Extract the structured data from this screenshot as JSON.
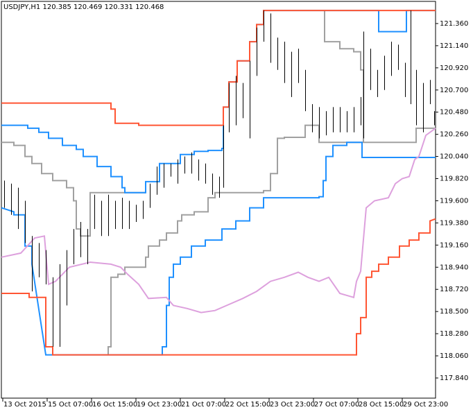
{
  "chart_data": {
    "type": "ohlc-lines",
    "title": "USDJPY,H1  120.385 120.469 120.331 120.468",
    "xlim": [
      0,
      313
    ],
    "ylim": [
      117.64,
      121.58
    ],
    "xticks": [
      {
        "value": 1,
        "label": "13 Oct 2015"
      },
      {
        "value": 33,
        "label": "15 Oct 07:00"
      },
      {
        "value": 65,
        "label": "16 Oct 15:00"
      },
      {
        "value": 97,
        "label": "19 Oct 23:00"
      },
      {
        "value": 129,
        "label": "21 Oct 07:00"
      },
      {
        "value": 161,
        "label": "22 Oct 15:00"
      },
      {
        "value": 193,
        "label": "23 Oct 23:00"
      },
      {
        "value": 225,
        "label": "27 Oct 07:00"
      },
      {
        "value": 257,
        "label": "28 Oct 15:00"
      },
      {
        "value": 289,
        "label": "29 Oct 23:00"
      }
    ],
    "yticks": [
      {
        "value": 121.36,
        "label": "121.360"
      },
      {
        "value": 121.14,
        "label": "121.140"
      },
      {
        "value": 120.92,
        "label": "120.920"
      },
      {
        "value": 120.7,
        "label": "120.700"
      },
      {
        "value": 120.48,
        "label": "120.480"
      },
      {
        "value": 120.26,
        "label": "120.260"
      },
      {
        "value": 120.04,
        "label": "120.040"
      },
      {
        "value": 119.82,
        "label": "119.820"
      },
      {
        "value": 119.6,
        "label": "119.600"
      },
      {
        "value": 119.38,
        "label": "119.380"
      },
      {
        "value": 119.16,
        "label": "119.160"
      },
      {
        "value": 118.94,
        "label": "118.940"
      },
      {
        "value": 118.72,
        "label": "118.720"
      },
      {
        "value": 118.5,
        "label": "118.500"
      },
      {
        "value": 118.28,
        "label": "118.280"
      },
      {
        "value": 118.06,
        "label": "118.060"
      },
      {
        "value": 117.84,
        "label": "117.840"
      }
    ],
    "bars": {
      "color": "#000000",
      "x": [
        2,
        7,
        12,
        17,
        22,
        27,
        32,
        37,
        42,
        47,
        52,
        57,
        62,
        67,
        72,
        77,
        82,
        87,
        92,
        97,
        102,
        107,
        112,
        117,
        122,
        127,
        132,
        137,
        142,
        147,
        152,
        157,
        160,
        164,
        169,
        174,
        179,
        184,
        189,
        194,
        199,
        204,
        209,
        214,
        219,
        224,
        229,
        234,
        239,
        244,
        249,
        254,
        259,
        261,
        266,
        271,
        276,
        281,
        286,
        291,
        295,
        299,
        304,
        309,
        312
      ],
      "low": [
        119.53,
        119.46,
        119.32,
        119.18,
        118.7,
        118.84,
        118.77,
        118.15,
        118.15,
        118.56,
        118.97,
        119.04,
        118.97,
        119.32,
        119.25,
        119.25,
        119.32,
        119.32,
        119.32,
        119.39,
        119.42,
        119.53,
        119.66,
        119.73,
        119.84,
        119.77,
        119.87,
        119.87,
        119.8,
        119.77,
        119.66,
        119.63,
        119.73,
        120.28,
        120.35,
        120.42,
        120.22,
        120.84,
        121.18,
        120.97,
        120.9,
        120.77,
        120.63,
        120.77,
        120.49,
        120.28,
        120.22,
        120.25,
        120.28,
        120.28,
        120.28,
        120.28,
        120.35,
        120.22,
        120.7,
        120.63,
        120.7,
        120.84,
        120.9,
        120.63,
        120.56,
        120.35,
        120.28,
        120.56,
        120.35
      ],
      "high": [
        119.8,
        119.77,
        119.73,
        119.6,
        119.25,
        119.18,
        119.11,
        118.84,
        118.97,
        119.11,
        119.32,
        119.39,
        119.32,
        119.66,
        119.6,
        119.66,
        119.6,
        119.63,
        119.6,
        119.56,
        119.6,
        119.77,
        119.94,
        119.97,
        119.97,
        120.01,
        120.04,
        120.08,
        120.01,
        119.97,
        119.87,
        119.84,
        120.35,
        120.77,
        120.84,
        120.77,
        120.99,
        121.32,
        121.49,
        121.46,
        121.22,
        121.18,
        121.08,
        121.11,
        120.9,
        120.56,
        120.53,
        120.49,
        120.53,
        120.53,
        120.49,
        120.53,
        120.63,
        121.28,
        121.11,
        120.9,
        121.04,
        121.18,
        121.15,
        120.97,
        121.49,
        120.9,
        120.77,
        120.8,
        120.49
      ]
    },
    "series": [
      {
        "color": "#a0a0a0",
        "x": [
          0,
          9,
          9,
          17,
          17,
          22,
          22,
          29,
          29,
          37,
          37,
          47,
          47,
          52,
          52,
          54,
          54,
          57,
          57,
          64,
          64,
          104,
          null,
          77,
          77,
          79,
          79,
          84,
          84,
          89,
          89,
          104,
          104,
          106,
          106,
          114,
          114,
          119,
          119,
          127,
          127,
          130,
          130,
          139,
          139,
          149,
          149,
          154,
          154,
          189,
          189,
          194,
          194,
          199,
          199,
          204,
          204,
          219,
          219,
          229,
          229,
          299,
          299,
          313,
          null,
          233,
          233,
          244,
          244,
          254,
          254,
          259,
          259,
          261,
          261
        ],
        "values": [
          120.18,
          120.18,
          120.15,
          120.15,
          120.04,
          120.04,
          119.97,
          119.97,
          119.87,
          119.87,
          119.8,
          119.8,
          119.73,
          119.73,
          119.6,
          119.6,
          119.32,
          119.32,
          119.25,
          119.25,
          119.68,
          119.68,
          null,
          118.07,
          118.15,
          118.15,
          118.84,
          118.84,
          118.87,
          118.87,
          118.94,
          118.94,
          119.04,
          119.04,
          119.15,
          119.15,
          119.21,
          119.21,
          119.28,
          119.28,
          119.4,
          119.4,
          119.46,
          119.46,
          119.49,
          119.49,
          119.63,
          119.63,
          119.68,
          119.68,
          119.7,
          119.7,
          119.87,
          119.87,
          120.22,
          120.22,
          120.23,
          120.23,
          120.35,
          120.35,
          120.18,
          120.18,
          120.32,
          120.32,
          null,
          121.49,
          121.18,
          121.18,
          121.11,
          121.11,
          121.08,
          121.08,
          120.9,
          120.9,
          120.18
        ]
      },
      {
        "color": "#1e90ff",
        "x": [
          0,
          19,
          19,
          27,
          27,
          34,
          34,
          44,
          44,
          54,
          54,
          59,
          59,
          69,
          69,
          79,
          79,
          87,
          87,
          89,
          89,
          104,
          104,
          114,
          114,
          129,
          129,
          139,
          139,
          149,
          149,
          159,
          159,
          160,
          160,
          164,
          164,
          170,
          170,
          179,
          179,
          184,
          184,
          189,
          189,
          272,
          272,
          292,
          292,
          313
        ],
        "values": [
          120.35,
          120.35,
          120.32,
          120.32,
          120.28,
          120.28,
          120.22,
          120.22,
          120.15,
          120.15,
          120.11,
          120.11,
          120.04,
          120.04,
          119.94,
          119.94,
          119.84,
          119.84,
          119.73,
          119.73,
          119.68,
          119.68,
          119.79,
          119.79,
          119.97,
          119.97,
          120.06,
          120.06,
          120.09,
          120.09,
          120.1,
          120.1,
          120.12,
          120.12,
          120.53,
          120.53,
          120.78,
          120.78,
          120.99,
          120.99,
          121.18,
          121.18,
          121.35,
          121.35,
          121.49,
          121.49,
          121.28,
          121.28,
          121.49,
          121.49
        ]
      },
      {
        "color": "#1e90ff",
        "x": [
          0,
          9,
          9,
          17,
          17,
          22,
          22,
          32,
          116,
          116,
          119,
          119,
          121,
          121,
          124,
          124,
          129,
          129,
          137,
          137,
          147,
          147,
          159,
          159,
          169,
          169,
          179,
          179,
          189,
          189,
          229,
          229,
          232,
          232,
          234,
          234,
          239,
          239,
          249,
          249,
          260,
          260,
          313
        ],
        "values": [
          119.53,
          119.49,
          119.46,
          119.46,
          119.15,
          119.15,
          118.97,
          118.07,
          118.07,
          118.15,
          118.15,
          118.56,
          118.56,
          118.84,
          118.84,
          118.97,
          118.97,
          119.04,
          119.04,
          119.15,
          119.15,
          119.21,
          119.21,
          119.32,
          119.32,
          119.4,
          119.4,
          119.53,
          119.53,
          119.63,
          119.63,
          119.64,
          119.64,
          119.8,
          119.8,
          120.04,
          120.04,
          120.15,
          120.15,
          120.18,
          120.18,
          120.03,
          120.03
        ]
      },
      {
        "color": "#dda0dd",
        "x": [
          0,
          14,
          24,
          31,
          34,
          39,
          49,
          64,
          79,
          86,
          91,
          99,
          106,
          119,
          124,
          134,
          144,
          154,
          164,
          174,
          184,
          194,
          204,
          214,
          221,
          229,
          236,
          244,
          254,
          256,
          259,
          263,
          269,
          279,
          284,
          289,
          294,
          298,
          301,
          306,
          313
        ],
        "values": [
          119.04,
          119.08,
          119.23,
          119.25,
          118.77,
          118.8,
          118.94,
          118.99,
          118.97,
          118.94,
          118.87,
          118.77,
          118.63,
          118.64,
          118.56,
          118.53,
          118.49,
          118.51,
          118.57,
          118.63,
          118.7,
          118.8,
          118.84,
          118.89,
          118.84,
          118.8,
          118.84,
          118.68,
          118.64,
          118.8,
          118.9,
          119.53,
          119.6,
          119.63,
          119.77,
          119.82,
          119.84,
          120.01,
          120.04,
          120.25,
          120.32
        ]
      },
      {
        "color": "#ff5533",
        "x": [
          0,
          79,
          79,
          82,
          82,
          99,
          99,
          160,
          160,
          164,
          164,
          170,
          170,
          179,
          179,
          184,
          184,
          189,
          189,
          313
        ],
        "values": [
          120.57,
          120.57,
          120.51,
          120.51,
          120.37,
          120.37,
          120.35,
          120.35,
          120.53,
          120.53,
          120.78,
          120.78,
          120.99,
          120.99,
          121.18,
          121.18,
          121.35,
          121.35,
          121.49,
          121.49
        ]
      },
      {
        "color": "#ff5533",
        "x": [
          0,
          20,
          20,
          32,
          32,
          37,
          37,
          256,
          256,
          259,
          259,
          263,
          263,
          267,
          267,
          272,
          272,
          279,
          279,
          287,
          287,
          294,
          294,
          301,
          301,
          309,
          309,
          313
        ],
        "values": [
          118.68,
          118.68,
          118.64,
          118.64,
          118.15,
          118.15,
          118.07,
          118.07,
          118.28,
          118.28,
          118.44,
          118.44,
          118.84,
          118.84,
          118.9,
          118.9,
          118.97,
          118.97,
          119.04,
          119.04,
          119.15,
          119.15,
          119.21,
          119.21,
          119.28,
          119.28,
          119.4,
          119.42
        ]
      }
    ]
  }
}
